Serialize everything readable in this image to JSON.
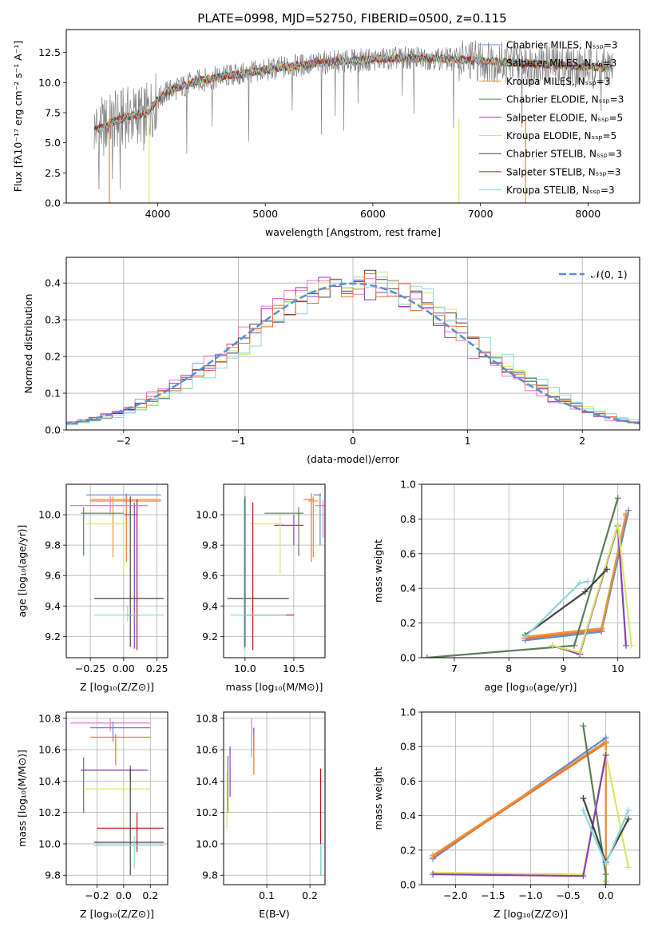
{
  "figure_title": "PLATE=0998, MJD=52750, FIBERID=0500, z=0.115",
  "colors": {
    "chabrier_miles": "#5b8cd8",
    "salpeter_miles": "#e8743a",
    "kroupa_miles": "#e8953a",
    "chabrier_elodie": "#5a7e58",
    "salpeter_elodie": "#8a3fbf",
    "kroupa_elodie": "#d7e866",
    "chabrier_stelib": "#444444",
    "salpeter_stelib": "#b01818",
    "kroupa_stelib": "#88d8dc",
    "pink": "#e878c8",
    "grid": "#b0b0b0"
  },
  "chart_data": [
    {
      "id": "spectrum",
      "type": "line",
      "title": "PLATE=0998, MJD=52750, FIBERID=0500, z=0.115",
      "xlabel": "wavelength [Angstrom, rest frame]",
      "ylabel": "Flux [fλ10⁻¹⁷ erg cm⁻² s⁻¹ A⁻¹]",
      "xlim": [
        3150,
        8480
      ],
      "ylim": [
        0,
        14.4
      ],
      "xticks": [
        4000,
        5000,
        6000,
        7000,
        8000
      ],
      "yticks": [
        0.0,
        2.5,
        5.0,
        7.5,
        10.0,
        12.5
      ],
      "grid": false,
      "legend_position": "right",
      "continuum": {
        "x": [
          3410,
          3500,
          3600,
          3700,
          3800,
          3900,
          4000,
          4100,
          4200,
          4300,
          4400,
          4500,
          4600,
          4700,
          4800,
          4900,
          5000,
          5200,
          5400,
          5600,
          5800,
          6000,
          6200,
          6400,
          6600,
          6800,
          7000,
          7200,
          7400,
          7600,
          7800,
          8000,
          8230
        ],
        "y": [
          6.1,
          6.3,
          6.8,
          7.1,
          7.3,
          7.4,
          8.6,
          9.3,
          9.6,
          9.9,
          10.2,
          10.3,
          10.5,
          10.6,
          10.7,
          10.9,
          11.0,
          11.3,
          11.5,
          11.7,
          11.8,
          11.9,
          12.0,
          12.0,
          12.0,
          11.9,
          11.8,
          11.7,
          11.6,
          11.5,
          11.4,
          11.3,
          11.2
        ]
      },
      "series": [
        {
          "name": "Chabrier MILES, N_SSP=3",
          "color_key": "chabrier_miles"
        },
        {
          "name": "Salpeter MILES, N_SSP=3",
          "color_key": "salpeter_miles"
        },
        {
          "name": "Kroupa MILES, N_SSP=3",
          "color_key": "kroupa_miles"
        },
        {
          "name": "Chabrier ELODIE, N_SSP=3",
          "color_key": "chabrier_elodie"
        },
        {
          "name": "Salpeter ELODIE, N_SSP=5",
          "color_key": "salpeter_elodie"
        },
        {
          "name": "Kroupa ELODIE, N_SSP=5",
          "color_key": "kroupa_elodie"
        },
        {
          "name": "Chabrier STELIB, N_SSP=3",
          "color_key": "chabrier_stelib"
        },
        {
          "name": "Salpeter STELIB, N_SSP=3",
          "color_key": "salpeter_stelib"
        },
        {
          "name": "Kroupa STELIB, N_SSP=3",
          "color_key": "kroupa_stelib"
        }
      ],
      "drop_lines": [
        {
          "x": 3550,
          "color_key": "salpeter_miles"
        },
        {
          "x": 3920,
          "color_key": "kroupa_elodie"
        },
        {
          "x": 6800,
          "color_key": "kroupa_elodie"
        },
        {
          "x": 7420,
          "color_key": "salpeter_miles"
        }
      ]
    },
    {
      "id": "residuals",
      "type": "histogram",
      "xlabel": "(data-model)/error",
      "ylabel": "Normed distribution",
      "xlim": [
        -2.5,
        2.5
      ],
      "ylim": [
        0,
        0.47
      ],
      "xticks": [
        -2,
        -1,
        0,
        1,
        2
      ],
      "xticklabels": [
        "−2",
        "−1",
        "0",
        "1",
        "2"
      ],
      "yticks": [
        0.0,
        0.1,
        0.2,
        0.3,
        0.4
      ],
      "grid": true,
      "legend_position": "top-right",
      "bin_width": 0.1,
      "reference_curve": {
        "name": "N(0,1)",
        "label_script": "𝒩(0, 1)",
        "color_key": "chabrier_miles"
      },
      "histograms": [
        {
          "color_key": "pink",
          "offset": 0.1
        },
        {
          "color_key": "salpeter_elodie",
          "offset": 0.05
        },
        {
          "color_key": "kroupa_elodie",
          "offset": -0.05
        },
        {
          "color_key": "chabrier_stelib",
          "offset": 0.0
        },
        {
          "color_key": "kroupa_stelib",
          "offset": -0.08
        },
        {
          "color_key": "salpeter_miles",
          "offset": 0.03
        }
      ]
    },
    {
      "id": "age_vs_Z",
      "type": "errorbar",
      "xlabel": "Z [log₁₀(Z/Z⊙)]",
      "ylabel": "age  [log₁₀(age/yr)]",
      "xlim": [
        -0.43,
        0.33
      ],
      "ylim": [
        9.06,
        10.2
      ],
      "xticks": [
        -0.25,
        0.0,
        0.25
      ],
      "xticklabels": [
        "−0.25",
        "0.00",
        "0.25"
      ],
      "yticks": [
        9.2,
        9.4,
        9.6,
        9.8,
        10.0
      ],
      "grid": true,
      "points": [
        {
          "x": 0.02,
          "x0": -0.28,
          "x1": 0.28,
          "y": 10.13,
          "y0": 10.08,
          "y1": 10.13,
          "color_key": "chabrier_miles"
        },
        {
          "x": 0.02,
          "x0": -0.25,
          "x1": 0.28,
          "y": 10.09,
          "y0": 9.69,
          "y1": 10.14,
          "color_key": "salpeter_miles"
        },
        {
          "x": -0.08,
          "x0": -0.25,
          "x1": 0.28,
          "y": 10.1,
          "y0": 9.72,
          "y1": 10.12,
          "color_key": "kroupa_miles"
        },
        {
          "x": -0.3,
          "x0": -0.32,
          "x1": 0.0,
          "y": 10.01,
          "y0": 9.73,
          "y1": 10.05,
          "color_key": "chabrier_elodie"
        },
        {
          "x": 0.08,
          "x0": 0.0,
          "x1": 0.1,
          "y": 10.0,
          "y0": 9.12,
          "y1": 10.08,
          "color_key": "salpeter_elodie"
        },
        {
          "x": 0.0,
          "x0": -0.28,
          "x1": 0.03,
          "y": 9.94,
          "y0": 9.61,
          "y1": 10.0,
          "color_key": "kroupa_elodie"
        },
        {
          "x": 0.05,
          "x0": -0.22,
          "x1": 0.3,
          "y": 9.45,
          "y0": 9.13,
          "y1": 10.12,
          "color_key": "chabrier_stelib"
        },
        {
          "x": 0.1,
          "x0": 0.02,
          "x1": 0.12,
          "y": 9.34,
          "y0": 9.11,
          "y1": 10.1,
          "color_key": "salpeter_stelib"
        },
        {
          "x": 0.03,
          "x0": -0.22,
          "x1": 0.3,
          "y": 9.34,
          "y0": 9.3,
          "y1": 9.4,
          "color_key": "kroupa_stelib"
        },
        {
          "x": -0.1,
          "x0": -0.4,
          "x1": 0.18,
          "y": 10.06,
          "y0": 10.0,
          "y1": 10.12,
          "color_key": "pink"
        }
      ]
    },
    {
      "id": "age_vs_mass",
      "type": "errorbar",
      "xlabel": "mass [log₁₀(M/M⊙)]",
      "ylabel": "",
      "xlim": [
        9.78,
        10.82
      ],
      "ylim": [
        9.06,
        10.2
      ],
      "xticks": [
        10.0,
        10.5
      ],
      "xticklabels": [
        "10.0",
        "10.5"
      ],
      "yticks": [
        9.2,
        9.4,
        9.6,
        9.8,
        10.0
      ],
      "grid": true,
      "points": [
        {
          "x": 10.77,
          "x0": 10.7,
          "x1": 10.78,
          "y": 10.13,
          "y0": 9.8,
          "y1": 10.14,
          "color_key": "chabrier_miles"
        },
        {
          "x": 10.68,
          "x0": 10.6,
          "x1": 10.7,
          "y": 10.1,
          "y0": 9.69,
          "y1": 10.14,
          "color_key": "salpeter_miles"
        },
        {
          "x": 10.7,
          "x0": 10.65,
          "x1": 10.75,
          "y": 10.09,
          "y0": 9.72,
          "y1": 10.12,
          "color_key": "kroupa_miles"
        },
        {
          "x": 10.55,
          "x0": 10.2,
          "x1": 10.6,
          "y": 10.01,
          "y0": 9.73,
          "y1": 10.05,
          "color_key": "chabrier_elodie"
        },
        {
          "x": 10.5,
          "x0": 10.3,
          "x1": 10.6,
          "y": 9.93,
          "y0": 9.8,
          "y1": 10.0,
          "color_key": "salpeter_elodie"
        },
        {
          "x": 10.36,
          "x0": 10.05,
          "x1": 10.4,
          "y": 9.94,
          "y0": 9.61,
          "y1": 10.0,
          "color_key": "kroupa_elodie"
        },
        {
          "x": 10.0,
          "x0": 9.82,
          "x1": 10.45,
          "y": 9.45,
          "y0": 9.13,
          "y1": 10.12,
          "color_key": "chabrier_stelib"
        },
        {
          "x": 10.08,
          "x0": 10.0,
          "x1": 10.5,
          "y": 9.34,
          "y0": 9.11,
          "y1": 10.08,
          "color_key": "salpeter_stelib"
        },
        {
          "x": 9.99,
          "x0": 9.85,
          "x1": 10.42,
          "y": 9.34,
          "y0": 9.12,
          "y1": 10.1,
          "color_key": "kroupa_stelib"
        },
        {
          "x": 10.8,
          "x0": 10.72,
          "x1": 10.82,
          "y": 10.06,
          "y0": 9.85,
          "y1": 10.1,
          "color_key": "pink"
        }
      ]
    },
    {
      "id": "weight_vs_age",
      "type": "line",
      "xlabel": "age  [log₁₀(age/yr)]",
      "ylabel": "mass weight",
      "xlim": [
        6.4,
        10.4
      ],
      "ylim": [
        0,
        1.0
      ],
      "xticks": [
        7,
        8,
        9,
        10
      ],
      "yticks": [
        0.0,
        0.2,
        0.4,
        0.6,
        0.8,
        1.0
      ],
      "grid": true,
      "series": [
        {
          "color_key": "chabrier_miles",
          "x": [
            8.3,
            9.7,
            10.2
          ],
          "y": [
            0.1,
            0.15,
            0.85
          ]
        },
        {
          "color_key": "salpeter_miles",
          "x": [
            8.3,
            9.7,
            10.15
          ],
          "y": [
            0.11,
            0.16,
            0.82
          ]
        },
        {
          "color_key": "kroupa_miles",
          "x": [
            8.3,
            9.7,
            10.15
          ],
          "y": [
            0.12,
            0.17,
            0.83
          ]
        },
        {
          "color_key": "chabrier_elodie",
          "x": [
            6.5,
            9.2,
            10.0
          ],
          "y": [
            0.0,
            0.07,
            0.92
          ]
        },
        {
          "color_key": "salpeter_elodie",
          "x": [
            8.8,
            9.3,
            10.0,
            10.15
          ],
          "y": [
            0.07,
            0.02,
            0.76,
            0.07
          ]
        },
        {
          "color_key": "kroupa_elodie",
          "x": [
            8.8,
            9.3,
            10.0,
            10.25
          ],
          "y": [
            0.07,
            0.03,
            0.77,
            0.07
          ]
        },
        {
          "color_key": "chabrier_stelib",
          "x": [
            8.3,
            9.4,
            9.8
          ],
          "y": [
            0.13,
            0.38,
            0.51
          ]
        },
        {
          "color_key": "kroupa_stelib",
          "x": [
            8.3,
            9.3,
            9.45
          ],
          "y": [
            0.12,
            0.43,
            0.44
          ]
        }
      ]
    },
    {
      "id": "mass_vs_Z",
      "type": "errorbar",
      "xlabel": "Z [log₁₀(Z/Z⊙)]",
      "ylabel": "mass [log₁₀(M/M⊙)]",
      "xlim": [
        -0.43,
        0.33
      ],
      "ylim": [
        9.74,
        10.84
      ],
      "xticks": [
        -0.2,
        0.0,
        0.2
      ],
      "xticklabels": [
        "−0.2",
        "0.0",
        "0.2"
      ],
      "yticks": [
        9.8,
        10.0,
        10.2,
        10.4,
        10.6,
        10.8
      ],
      "grid": true,
      "points": [
        {
          "x": -0.1,
          "x0": -0.4,
          "x1": 0.2,
          "y": 10.77,
          "y0": 10.72,
          "y1": 10.8,
          "color_key": "pink"
        },
        {
          "x": -0.08,
          "x0": -0.25,
          "x1": 0.2,
          "y": 10.74,
          "y0": 10.65,
          "y1": 10.78,
          "color_key": "chabrier_miles"
        },
        {
          "x": -0.06,
          "x0": -0.25,
          "x1": 0.2,
          "y": 10.68,
          "y0": 10.5,
          "y1": 10.7,
          "color_key": "salpeter_miles"
        },
        {
          "x": -0.3,
          "x0": -0.32,
          "x1": 0.18,
          "y": 10.47,
          "y0": 10.2,
          "y1": 10.55,
          "color_key": "chabrier_elodie"
        },
        {
          "x": 0.05,
          "x0": -0.32,
          "x1": 0.18,
          "y": 10.47,
          "y0": 10.4,
          "y1": 10.5,
          "color_key": "salpeter_elodie"
        },
        {
          "x": 0.0,
          "x0": -0.3,
          "x1": 0.2,
          "y": 10.35,
          "y0": 10.1,
          "y1": 10.4,
          "color_key": "kroupa_elodie"
        },
        {
          "x": 0.05,
          "x0": -0.22,
          "x1": 0.3,
          "y": 10.01,
          "y0": 9.8,
          "y1": 10.48,
          "color_key": "chabrier_stelib"
        },
        {
          "x": 0.1,
          "x0": -0.2,
          "x1": 0.3,
          "y": 10.1,
          "y0": 9.95,
          "y1": 10.2,
          "color_key": "salpeter_stelib"
        },
        {
          "x": 0.08,
          "x0": -0.22,
          "x1": 0.3,
          "y": 9.99,
          "y0": 9.84,
          "y1": 10.05,
          "color_key": "kroupa_stelib"
        }
      ]
    },
    {
      "id": "mass_vs_EBV",
      "type": "errorbar",
      "xlabel": "E(B-V)",
      "ylabel": "",
      "xlim": [
        0.0,
        0.235
      ],
      "ylim": [
        9.74,
        10.84
      ],
      "xticks": [
        0.1,
        0.2
      ],
      "xticklabels": [
        "0.1",
        "0.2"
      ],
      "yticks": [
        9.8,
        10.0,
        10.2,
        10.4,
        10.6,
        10.8
      ],
      "grid": true,
      "points": [
        {
          "x": 0.065,
          "y": 10.77,
          "y0": 10.55,
          "y1": 10.8,
          "color_key": "pink"
        },
        {
          "x": 0.07,
          "y": 10.72,
          "y0": 10.6,
          "y1": 10.74,
          "color_key": "salpeter_elodie"
        },
        {
          "x": 0.07,
          "y": 10.68,
          "y0": 10.44,
          "y1": 10.7,
          "color_key": "salpeter_miles"
        },
        {
          "x": 0.01,
          "y": 10.55,
          "y0": 10.2,
          "y1": 10.56,
          "color_key": "chabrier_elodie"
        },
        {
          "x": 0.015,
          "y": 10.5,
          "y0": 10.3,
          "y1": 10.62,
          "color_key": "salpeter_elodie"
        },
        {
          "x": 0.008,
          "y": 10.35,
          "y0": 10.1,
          "y1": 10.45,
          "color_key": "kroupa_elodie"
        },
        {
          "x": 0.225,
          "y": 10.01,
          "y0": 9.8,
          "y1": 10.48,
          "color_key": "salpeter_stelib"
        },
        {
          "x": 0.225,
          "y": 9.9,
          "y0": 9.8,
          "y1": 10.0,
          "color_key": "kroupa_stelib"
        }
      ]
    },
    {
      "id": "weight_vs_Z",
      "type": "line",
      "xlabel": "Z [log₁₀(Z/Z⊙)]",
      "ylabel": "mass weight",
      "xlim": [
        -2.45,
        0.45
      ],
      "ylim": [
        0,
        1.0
      ],
      "xticks": [
        -2.0,
        -1.5,
        -1.0,
        -0.5,
        0.0
      ],
      "xticklabels": [
        "−2.0",
        "−1.5",
        "−1.0",
        "−0.5",
        "0.0"
      ],
      "yticks": [
        0.0,
        0.2,
        0.4,
        0.6,
        0.8,
        1.0
      ],
      "grid": true,
      "series": [
        {
          "color_key": "chabrier_miles",
          "x": [
            -2.3,
            0.0,
            0.0
          ],
          "y": [
            0.15,
            0.85,
            0.12
          ]
        },
        {
          "color_key": "salpeter_miles",
          "x": [
            -2.3,
            0.0,
            0.0
          ],
          "y": [
            0.16,
            0.82,
            0.0
          ]
        },
        {
          "color_key": "kroupa_miles",
          "x": [
            -2.3,
            0.0,
            0.0
          ],
          "y": [
            0.17,
            0.83,
            0.02
          ]
        },
        {
          "color_key": "chabrier_elodie",
          "x": [
            -0.3,
            0.0,
            0.0
          ],
          "y": [
            0.92,
            0.06,
            0.0
          ]
        },
        {
          "color_key": "kroupa_elodie",
          "x": [
            -2.3,
            -0.3,
            0.0,
            0.3
          ],
          "y": [
            0.07,
            0.06,
            0.76,
            0.1
          ]
        },
        {
          "color_key": "salpeter_elodie",
          "x": [
            -2.3,
            -0.3,
            0.0
          ],
          "y": [
            0.06,
            0.05,
            0.75
          ]
        },
        {
          "color_key": "chabrier_stelib",
          "x": [
            -0.3,
            0.0,
            0.3
          ],
          "y": [
            0.5,
            0.13,
            0.38
          ]
        },
        {
          "color_key": "kroupa_stelib",
          "x": [
            -0.3,
            0.0,
            0.3
          ],
          "y": [
            0.43,
            0.12,
            0.43
          ]
        }
      ]
    }
  ]
}
